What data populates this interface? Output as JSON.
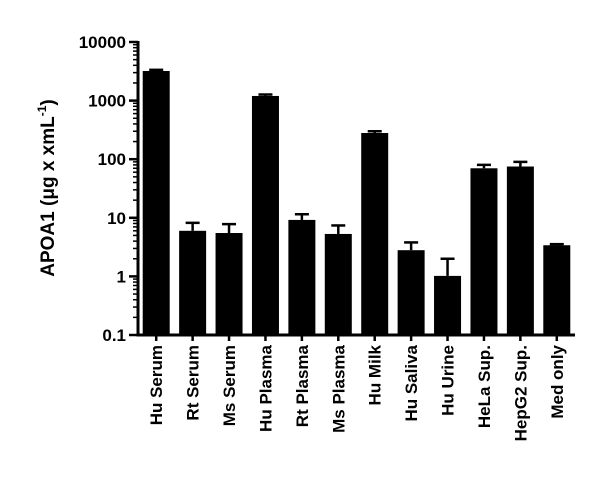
{
  "chart_data": {
    "type": "bar",
    "title": "",
    "xlabel": "",
    "ylabel": "APOA1 (μg x xmL",
    "ylabel_superscript": "-1",
    "ylabel_close": ")",
    "yscale": "log",
    "ylim": [
      0.1,
      10000
    ],
    "yticks": [
      "0.1",
      "1",
      "10",
      "100",
      "1000",
      "10000"
    ],
    "ytick_values": [
      0.1,
      1,
      10,
      100,
      1000,
      10000
    ],
    "categories": [
      "Hu Serum",
      "Rt Serum",
      "Ms Serum",
      "Hu Plasma",
      "Rt Plasma",
      "Ms Plasma",
      "Hu Milk",
      "Hu Saliva",
      "Hu Urine",
      "HeLa Sup.",
      "HepG2 Sup.",
      "Med only"
    ],
    "values": [
      3200,
      6,
      5.5,
      1200,
      9.2,
      5.3,
      280,
      2.8,
      1.02,
      70,
      75,
      3.4
    ],
    "errors_upper": [
      3350,
      8.2,
      7.8,
      1270,
      11.5,
      7.4,
      300,
      3.8,
      2.0,
      80,
      90,
      3.55
    ],
    "grid": false,
    "bar_color": "#000000"
  }
}
